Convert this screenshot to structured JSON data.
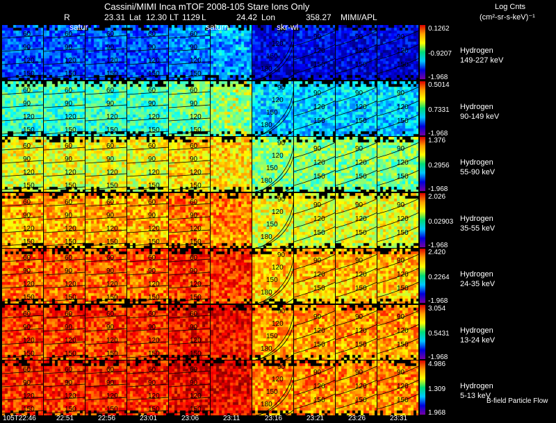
{
  "header": {
    "title": "Cassini/MIMI Inca mTOF  2008-105   Stare   Ions Only",
    "line2_r": "R",
    "line2_r_val": "23.31",
    "line2_lat": "Lat",
    "line2_lat_val": "12.30",
    "line2_lt": "LT",
    "line2_lt_val": "1129",
    "line2_l": "L",
    "line2_lon_val": "24.42",
    "line2_lon": "Lon",
    "line2_lon2_val": "358.27",
    "line2_org": "MIMI/APL",
    "units_title": "Log Cnts",
    "units": "(cm²-sr-s-keV)⁻¹",
    "overlay_saturn1": "satur",
    "overlay_saturn2": "saturn",
    "overlay_skrw": "skr-wl"
  },
  "channels": [
    {
      "label1": "Hydrogen",
      "label2": "149-227 keV",
      "max": "0.1262",
      "mid": "-0.9207",
      "min": "-1.968",
      "level": 0.22
    },
    {
      "label1": "Hydrogen",
      "label2": "90-149 keV",
      "max": "0.5014",
      "mid": "0.7331",
      "min": "-1.968",
      "level": 0.45
    },
    {
      "label1": "Hydrogen",
      "label2": "55-90 keV",
      "max": "1.376",
      "mid": "0.2956",
      "min": "-1.968",
      "level": 0.62
    },
    {
      "label1": "Hydrogen",
      "label2": "35-55 keV",
      "max": "2.026",
      "mid": "0.02903",
      "min": "-1.968",
      "level": 0.72
    },
    {
      "label1": "Hydrogen",
      "label2": "24-35 keV",
      "max": "2.420",
      "mid": "0.2264",
      "min": "-1.968",
      "level": 0.8
    },
    {
      "label1": "Hydrogen",
      "label2": "13-24 keV",
      "max": "3.054",
      "mid": "0.5431",
      "min": "-1.968",
      "level": 0.84
    },
    {
      "label1": "Hydrogen",
      "label2": "5-13 keV",
      "max": "4.986",
      "mid": "1.309",
      "min": "1.968",
      "level": 0.86
    }
  ],
  "times": [
    "105T22:46",
    "22:51",
    "22:56",
    "23:01",
    "23:06",
    "23:11",
    "23:16",
    "23:21",
    "23:26",
    "23:31"
  ],
  "contour_labels": [
    "60",
    "90",
    "120",
    "150"
  ],
  "contour_labels_curved": [
    "90",
    "120",
    "150",
    "180"
  ],
  "legend_note": "B-field Particle Flow"
}
